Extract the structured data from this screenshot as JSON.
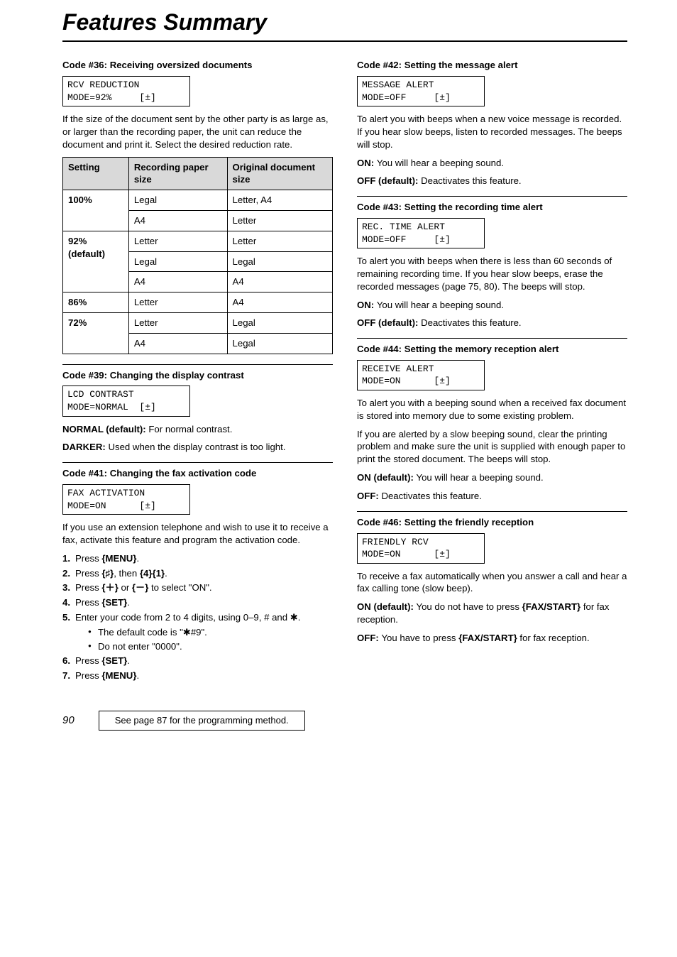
{
  "title": "Features Summary",
  "left": {
    "code36": {
      "head": "Code #36: Receiving oversized documents",
      "lcd": "RCV REDUCTION\nMODE=92%     [±]",
      "para": "If the size of the document sent by the other party is as large as, or larger than the recording paper, the unit can reduce the document and print it. Select the desired reduction rate.",
      "table": {
        "headers": [
          "Setting",
          "Recording paper size",
          "Original document size"
        ],
        "rows": [
          [
            "100%",
            "Legal",
            "Letter, A4"
          ],
          [
            "",
            "A4",
            "Letter"
          ],
          [
            "92% (default)",
            "Letter",
            "Letter"
          ],
          [
            "",
            "Legal",
            "Legal"
          ],
          [
            "",
            "A4",
            "A4"
          ],
          [
            "86%",
            "Letter",
            "A4"
          ],
          [
            "72%",
            "Letter",
            "Legal"
          ],
          [
            "",
            "A4",
            "Legal"
          ]
        ]
      }
    },
    "code39": {
      "head": "Code #39: Changing the display contrast",
      "lcd": "LCD CONTRAST\nMODE=NORMAL  [±]",
      "normal_label": "NORMAL (default): ",
      "normal_text": "For normal contrast.",
      "darker_label": "DARKER: ",
      "darker_text": "Used when the display contrast is too light."
    },
    "code41": {
      "head": "Code #41: Changing the fax activation code",
      "lcd": "FAX ACTIVATION\nMODE=ON      [±]",
      "para": "If you use an extension telephone and wish to use it to receive a fax, activate this feature and program the activation code.",
      "steps": [
        "Press {MENU}.",
        "Press {♯}, then {4}{1}.",
        "Press {＋} or {－} to select \"ON\".",
        "Press {SET}.",
        "Enter your code from 2 to 4 digits, using 0–9, # and ✱."
      ],
      "bullets": [
        "The default code is \"✱#9\".",
        "Do not enter \"0000\"."
      ],
      "step6": "Press {SET}.",
      "step7": "Press {MENU}."
    }
  },
  "right": {
    "code42": {
      "head": "Code #42: Setting the message alert",
      "lcd": "MESSAGE ALERT\nMODE=OFF     [±]",
      "para": "To alert you with beeps when a new voice message is recorded. If you hear slow beeps, listen to recorded messages. The beeps will stop.",
      "on_label": "ON: ",
      "on_text": "You will hear a beeping sound.",
      "off_label": "OFF (default): ",
      "off_text": "Deactivates this feature."
    },
    "code43": {
      "head": "Code #43: Setting the recording time alert",
      "lcd": "REC. TIME ALERT\nMODE=OFF     [±]",
      "para": "To alert you with beeps when there is less than 60 seconds of remaining recording time. If you hear slow beeps, erase the recorded messages (page 75, 80). The beeps will stop.",
      "on_label": "ON: ",
      "on_text": "You will hear a beeping sound.",
      "off_label": "OFF (default): ",
      "off_text": "Deactivates this feature."
    },
    "code44": {
      "head": "Code #44: Setting the memory reception alert",
      "lcd": "RECEIVE ALERT\nMODE=ON      [±]",
      "para1": "To alert you with a beeping sound when a received fax document is stored into memory due to some existing problem.",
      "para2": "If you are alerted by a slow beeping sound, clear the printing problem and make sure the unit is supplied with enough paper to print the stored document. The beeps will stop.",
      "on_label": "ON (default): ",
      "on_text": "You will hear a beeping sound.",
      "off_label": "OFF: ",
      "off_text": "Deactivates this feature."
    },
    "code46": {
      "head": "Code #46: Setting the friendly reception",
      "lcd": "FRIENDLY RCV\nMODE=ON      [±]",
      "para": "To receive a fax automatically when you answer a call and hear a fax calling tone (slow beep).",
      "on_label": "ON (default): ",
      "on_text_a": "You do not have to press ",
      "on_key": "{FAX/START}",
      "on_text_b": " for fax reception.",
      "off_label": "OFF: ",
      "off_text_a": "You have to press ",
      "off_key": "{FAX/START}",
      "off_text_b": " for fax reception."
    }
  },
  "footer": {
    "page": "90",
    "note": "See page 87 for the programming method."
  }
}
